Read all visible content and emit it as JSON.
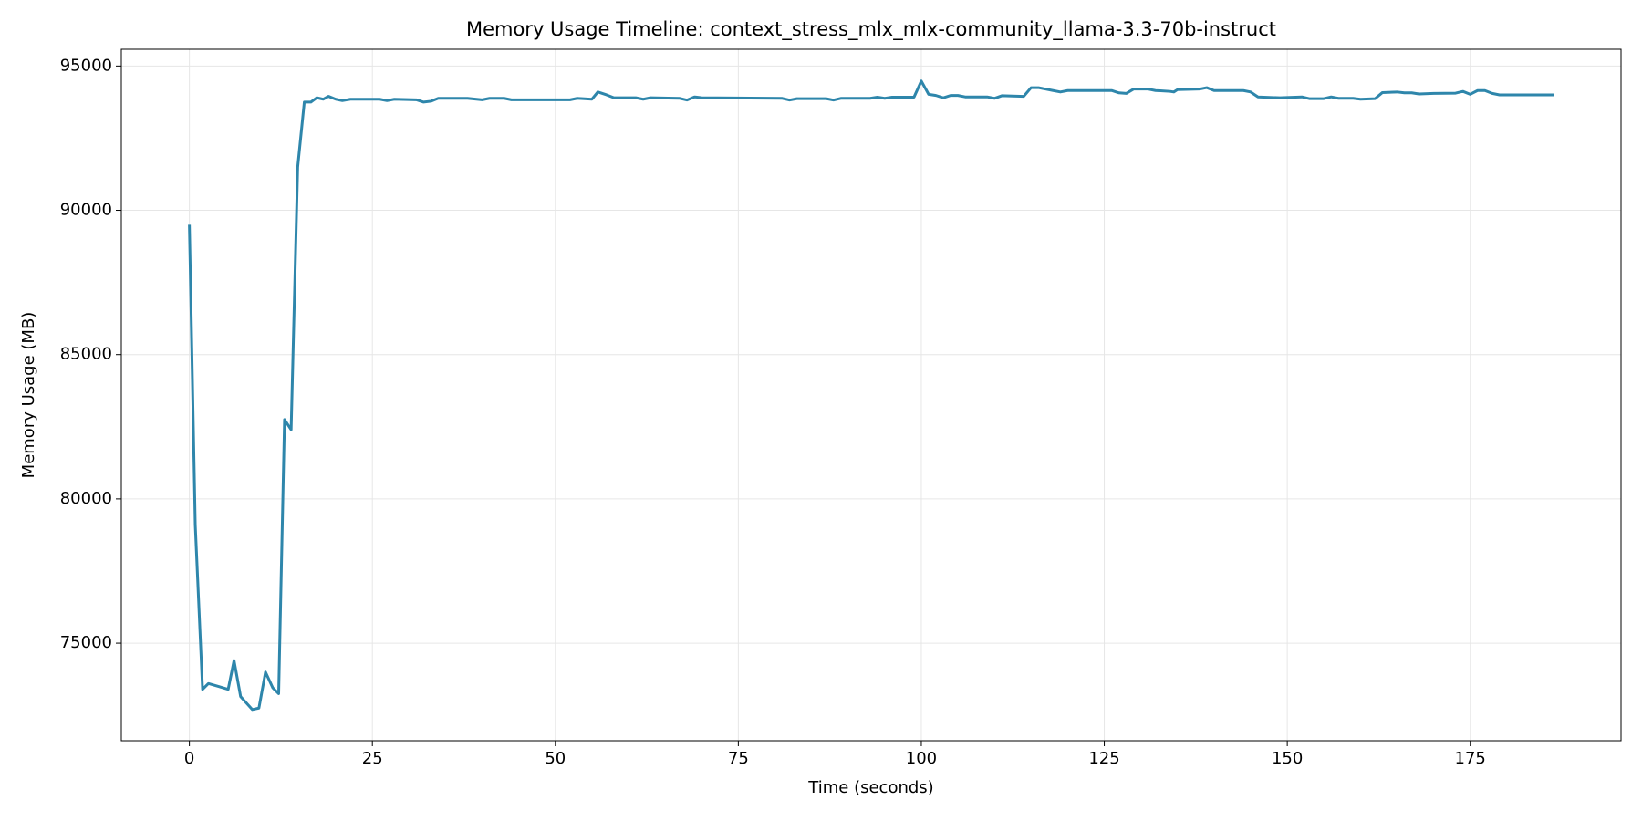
{
  "chart_data": {
    "type": "line",
    "title": "Memory Usage Timeline: context_stress_mlx_mlx-community_llama-3.3-70b-instruct",
    "xlabel": "Time (seconds)",
    "ylabel": "Memory Usage (MB)",
    "color": "#2e86ab",
    "grid": true,
    "xlim": [
      -9.3,
      195.6
    ],
    "ylim": [
      71620,
      95580
    ],
    "xticks": [
      0,
      25,
      50,
      75,
      100,
      125,
      150,
      175
    ],
    "yticks": [
      75000,
      80000,
      85000,
      90000,
      95000
    ],
    "x": [
      0,
      0.8,
      1.8,
      2.6,
      4,
      5.3,
      6.1,
      7,
      8.6,
      9.5,
      10.4,
      11.4,
      12.2,
      13,
      13.9,
      14.8,
      15.7,
      16.6,
      17.4,
      18.3,
      19,
      20,
      20.9,
      22,
      26,
      27,
      28,
      31,
      32,
      33,
      34,
      38,
      40,
      41,
      43,
      44,
      52,
      53,
      55,
      55.8,
      57,
      58,
      61,
      62,
      63,
      67,
      68,
      69,
      70,
      81,
      82,
      83,
      87,
      88,
      89,
      93,
      94,
      95,
      96,
      99,
      100,
      101,
      102,
      103,
      104,
      105,
      106,
      109,
      110,
      111,
      114,
      115,
      116,
      118,
      119,
      120,
      126,
      127,
      128,
      129,
      131,
      132,
      134,
      134.5,
      135,
      138,
      139,
      140,
      144,
      145,
      146,
      149,
      152,
      153,
      155,
      156,
      157,
      159,
      160,
      162,
      163,
      165,
      166,
      167,
      168,
      170,
      173,
      174,
      175,
      176,
      177,
      178,
      179,
      186.5
    ],
    "values": [
      89500,
      79100,
      73400,
      73600,
      73500,
      73400,
      74400,
      73150,
      72700,
      72750,
      74000,
      73450,
      73250,
      82750,
      82400,
      91500,
      93750,
      93750,
      93900,
      93850,
      93950,
      93850,
      93800,
      93850,
      93850,
      93800,
      93850,
      93830,
      93750,
      93780,
      93880,
      93880,
      93830,
      93880,
      93880,
      93830,
      93830,
      93880,
      93850,
      94100,
      94000,
      93900,
      93900,
      93850,
      93900,
      93880,
      93820,
      93930,
      93900,
      93880,
      93820,
      93870,
      93870,
      93820,
      93880,
      93880,
      93920,
      93880,
      93920,
      93920,
      94480,
      94020,
      93980,
      93900,
      93980,
      93980,
      93930,
      93930,
      93880,
      93970,
      93950,
      94250,
      94250,
      94150,
      94100,
      94150,
      94150,
      94070,
      94050,
      94200,
      94200,
      94150,
      94120,
      94100,
      94180,
      94200,
      94250,
      94150,
      94150,
      94100,
      93930,
      93900,
      93930,
      93870,
      93870,
      93930,
      93880,
      93880,
      93850,
      93870,
      94080,
      94100,
      94070,
      94070,
      94030,
      94050,
      94060,
      94120,
      94020,
      94150,
      94150,
      94050,
      94000,
      94000
    ]
  }
}
